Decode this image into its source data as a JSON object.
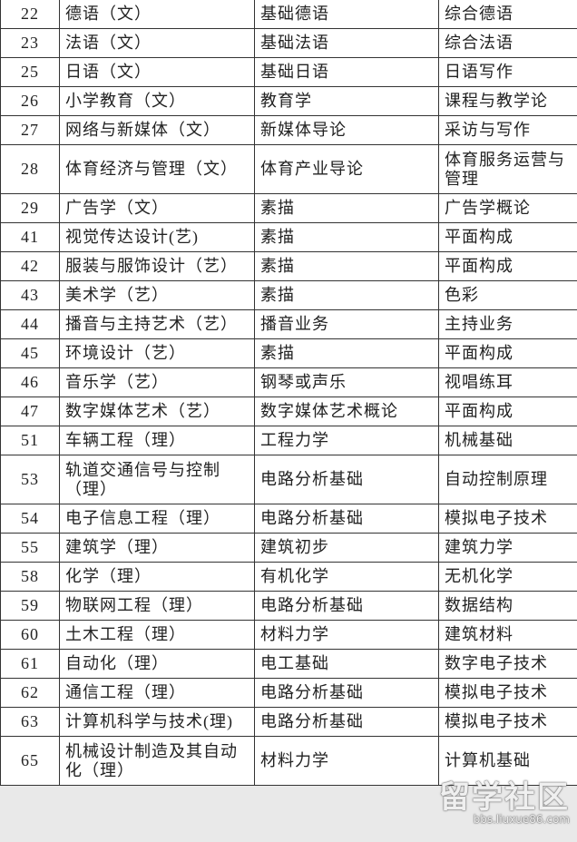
{
  "table": {
    "rows": [
      [
        "22",
        "德语（文）",
        "基础德语",
        "综合德语"
      ],
      [
        "23",
        "法语（文）",
        "基础法语",
        "综合法语"
      ],
      [
        "25",
        "日语（文）",
        "基础日语",
        "日语写作"
      ],
      [
        "26",
        "小学教育（文）",
        "教育学",
        "课程与教学论"
      ],
      [
        "27",
        "网络与新媒体（文）",
        "新媒体导论",
        "采访与写作"
      ],
      [
        "28",
        "体育经济与管理（文）",
        "体育产业导论",
        "体育服务运营与管理"
      ],
      [
        "29",
        "广告学（文）",
        "素描",
        "广告学概论"
      ],
      [
        "41",
        "视觉传达设计(艺)",
        "素描",
        "平面构成"
      ],
      [
        "42",
        "服装与服饰设计（艺）",
        "素描",
        "平面构成"
      ],
      [
        "43",
        "美术学（艺）",
        "素描",
        "色彩"
      ],
      [
        "44",
        "播音与主持艺术（艺）",
        "播音业务",
        "主持业务"
      ],
      [
        "45",
        "环境设计（艺）",
        "素描",
        "平面构成"
      ],
      [
        "46",
        "音乐学（艺）",
        "钢琴或声乐",
        "视唱练耳"
      ],
      [
        "47",
        "数字媒体艺术（艺）",
        "数字媒体艺术概论",
        "平面构成"
      ],
      [
        "51",
        "车辆工程（理）",
        "工程力学",
        "机械基础"
      ],
      [
        "53",
        "轨道交通信号与控制（理）",
        "电路分析基础",
        "自动控制原理"
      ],
      [
        "54",
        "电子信息工程（理）",
        "电路分析基础",
        "模拟电子技术"
      ],
      [
        "55",
        "建筑学（理）",
        "建筑初步",
        "建筑力学"
      ],
      [
        "58",
        "化学（理）",
        "有机化学",
        "无机化学"
      ],
      [
        "59",
        "物联网工程（理）",
        "电路分析基础",
        "数据结构"
      ],
      [
        "60",
        "土木工程（理）",
        "材料力学",
        "建筑材料"
      ],
      [
        "61",
        "自动化（理）",
        "电工基础",
        "数字电子技术"
      ],
      [
        "62",
        "通信工程（理）",
        "电路分析基础",
        "模拟电子技术"
      ],
      [
        "63",
        "计算机科学与技术(理)",
        "电路分析基础",
        "模拟电子技术"
      ],
      [
        "65",
        "机械设计制造及其自动化（理）",
        "材料力学",
        "计算机基础"
      ]
    ]
  },
  "watermark": {
    "title": "留学社区",
    "url": "bbs.liuxue86.com"
  }
}
